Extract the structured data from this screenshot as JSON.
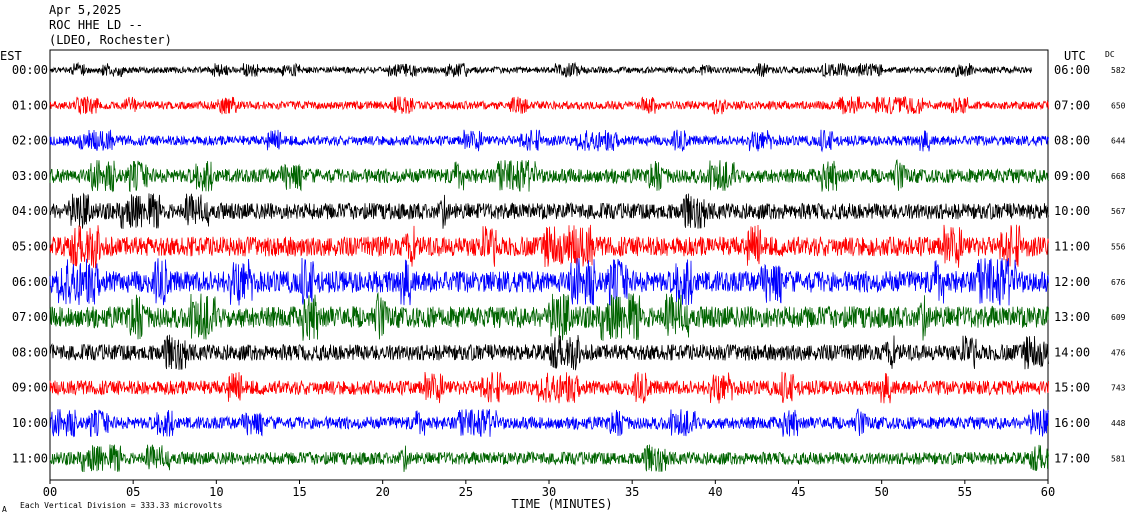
{
  "header": {
    "date": "Apr 5,2025",
    "station": "ROC HHE LD --",
    "network": "(LDEO, Rochester)"
  },
  "left_tz": "EST",
  "right_tz": "UTC",
  "dc_label": "DC",
  "footer_note": "Each Vertical Division = 333.33 microvolts",
  "footer_mark": "A",
  "chart_data": {
    "type": "line",
    "title": "ROC HHE LD --",
    "xlabel": "TIME (MINUTES)",
    "xlim": [
      0,
      60
    ],
    "x_ticks": [
      "00",
      "05",
      "10",
      "15",
      "20",
      "25",
      "30",
      "35",
      "40",
      "45",
      "50",
      "55",
      "60"
    ],
    "trace_colors": [
      "#000000",
      "#ff0000",
      "#0000ff",
      "#006400"
    ],
    "rows": [
      {
        "est": "00:00",
        "utc": "06:00",
        "dc": "582",
        "amp": 0.35
      },
      {
        "est": "01:00",
        "utc": "07:00",
        "dc": "650",
        "amp": 0.45
      },
      {
        "est": "02:00",
        "utc": "08:00",
        "dc": "644",
        "amp": 0.55
      },
      {
        "est": "03:00",
        "utc": "09:00",
        "dc": "668",
        "amp": 0.8
      },
      {
        "est": "04:00",
        "utc": "10:00",
        "dc": "567",
        "amp": 0.9
      },
      {
        "est": "05:00",
        "utc": "11:00",
        "dc": "556",
        "amp": 1.1
      },
      {
        "est": "06:00",
        "utc": "12:00",
        "dc": "676",
        "amp": 1.2
      },
      {
        "est": "07:00",
        "utc": "13:00",
        "dc": "609",
        "amp": 1.2
      },
      {
        "est": "08:00",
        "utc": "14:00",
        "dc": "476",
        "amp": 0.9
      },
      {
        "est": "09:00",
        "utc": "15:00",
        "dc": "743",
        "amp": 0.8
      },
      {
        "est": "10:00",
        "utc": "16:00",
        "dc": "448",
        "amp": 0.7
      },
      {
        "est": "11:00",
        "utc": "17:00",
        "dc": "581",
        "amp": 0.7
      }
    ]
  }
}
